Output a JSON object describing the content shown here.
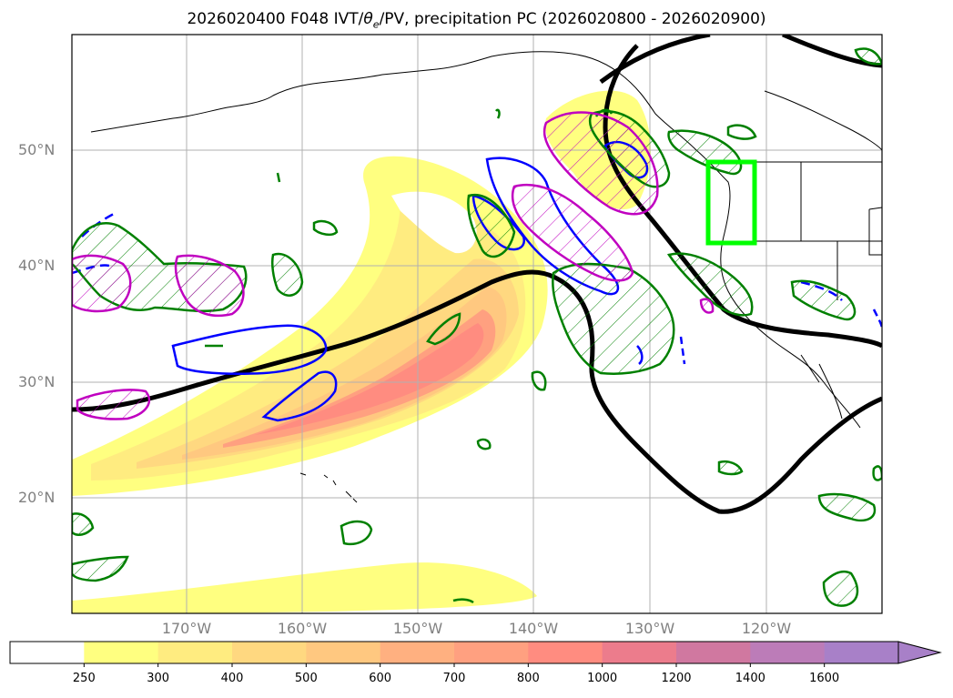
{
  "title": "2026020400 F048 IVT/θe/PV, precipitation PC (2026020800 - 2026020900)",
  "title_parts": {
    "prefix": "2026020400 F048 IVT/",
    "theta": "θ",
    "sub": "e",
    "suffix": "/PV, precipitation PC (2026020800 - 2026020900)"
  },
  "map": {
    "lon_range": [
      -180,
      -110
    ],
    "lat_range": [
      10,
      60
    ],
    "lat_labels": [
      "50°N",
      "40°N",
      "30°N",
      "20°N"
    ],
    "lon_labels": [
      "170°W",
      "160°W",
      "150°W",
      "140°W",
      "130°W",
      "120°W"
    ],
    "grid": true,
    "highlight_box_color": "#00ff00",
    "contour_colors": {
      "theta_e": "#000000",
      "pv": "#0000ff",
      "precip_pos": "#008000",
      "precip_neg": "#c000c0"
    }
  },
  "colorbar": {
    "ticks": [
      "250",
      "300",
      "400",
      "500",
      "600",
      "700",
      "800",
      "1000",
      "1200",
      "1400",
      "1600"
    ],
    "colors": [
      "#ffffff",
      "#ffff80",
      "#ffec80",
      "#ffd880",
      "#ffc880",
      "#ffb080",
      "#ffa080",
      "#ff8c80",
      "#ec7c8c",
      "#d078a0",
      "#bc7cb8",
      "#a880c8"
    ]
  }
}
